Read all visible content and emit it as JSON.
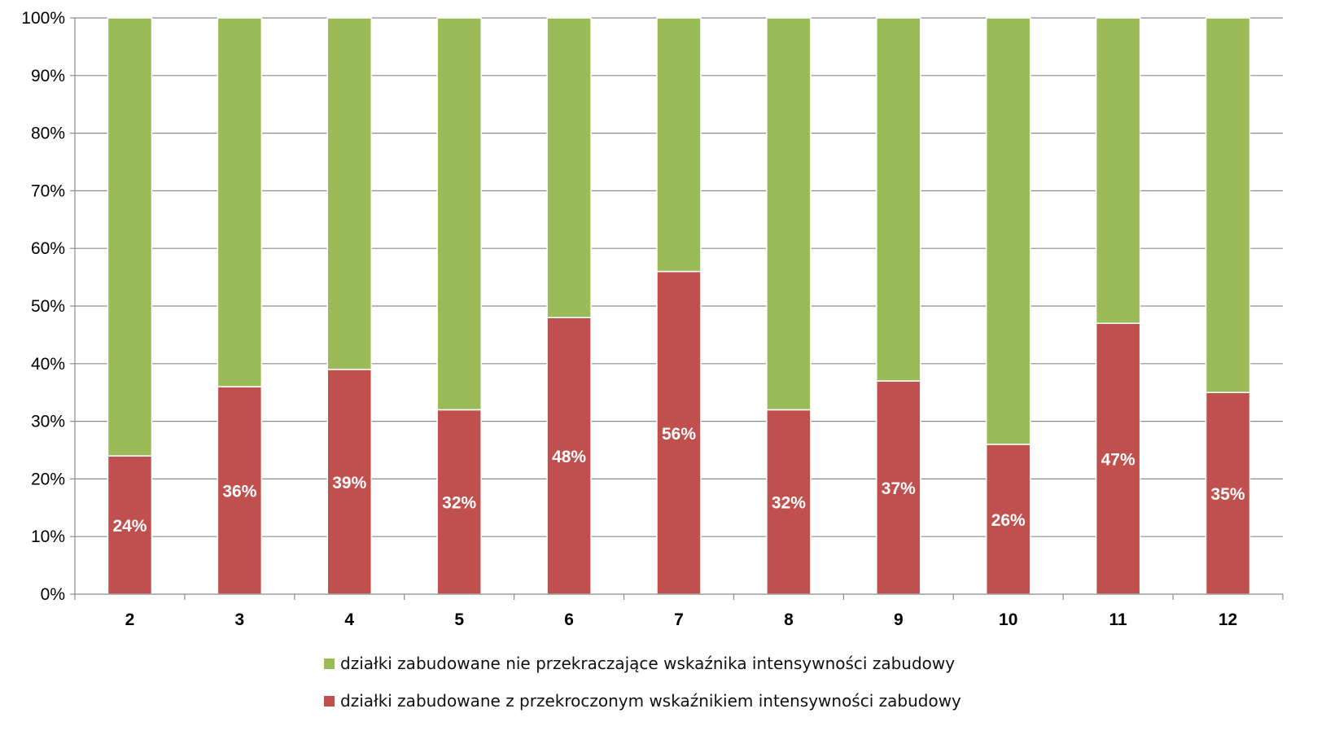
{
  "chart_data": {
    "type": "bar",
    "stacked": true,
    "percent_stacked": true,
    "categories": [
      "2",
      "3",
      "4",
      "5",
      "6",
      "7",
      "8",
      "9",
      "10",
      "11",
      "12"
    ],
    "series": [
      {
        "name": "działki zabudowane z przekroczonym wskaźnikiem intensywności zabudowy",
        "color": "#C0504D",
        "values": [
          24,
          36,
          39,
          32,
          48,
          56,
          32,
          37,
          26,
          47,
          35
        ],
        "value_labels": [
          "24%",
          "36%",
          "39%",
          "32%",
          "48%",
          "56%",
          "32%",
          "37%",
          "26%",
          "47%",
          "35%"
        ]
      },
      {
        "name": "działki zabudowane nie przekraczające wskaźnika intensywności zabudowy",
        "color": "#9BBB59",
        "values": [
          76,
          64,
          61,
          68,
          52,
          44,
          68,
          63,
          74,
          53,
          65
        ]
      }
    ],
    "ylim": [
      0,
      100
    ],
    "yticks": [
      "0%",
      "10%",
      "20%",
      "30%",
      "40%",
      "50%",
      "60%",
      "70%",
      "80%",
      "90%",
      "100%"
    ],
    "grid": true,
    "legend_placement": "bottom",
    "title": "",
    "xlabel": "",
    "ylabel": ""
  }
}
